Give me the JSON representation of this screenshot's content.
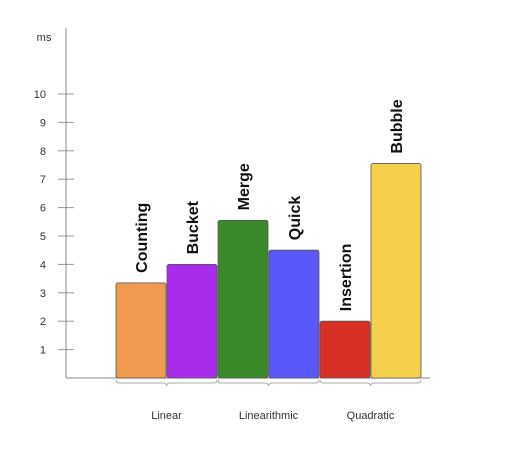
{
  "chart_data": {
    "type": "bar",
    "ylabel": "ms",
    "ylim": [
      0,
      10
    ],
    "yticks": [
      1,
      2,
      3,
      4,
      5,
      6,
      7,
      8,
      9,
      10
    ],
    "categories": [
      "Counting",
      "Bucket",
      "Merge",
      "Quick",
      "Insertion",
      "Bubble"
    ],
    "values": [
      3.35,
      4.0,
      5.55,
      4.5,
      2.0,
      7.55
    ],
    "colors": [
      "#ef9a4e",
      "#a92ceb",
      "#3b8a2a",
      "#5b58f9",
      "#d93025",
      "#f5d04a"
    ],
    "groups": [
      {
        "label": "Linear",
        "members": [
          "Counting",
          "Bucket"
        ]
      },
      {
        "label": "Linearithmic",
        "members": [
          "Merge",
          "Quick"
        ]
      },
      {
        "label": "Quadratic",
        "members": [
          "Insertion",
          "Bubble"
        ]
      }
    ],
    "grid": false
  }
}
